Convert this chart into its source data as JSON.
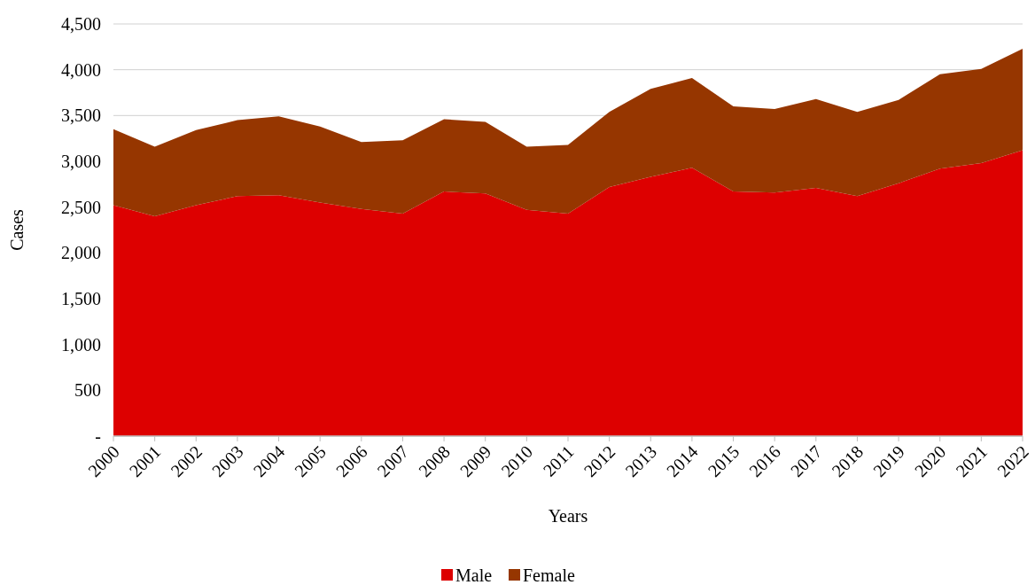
{
  "chart_data": {
    "type": "area",
    "stacked": true,
    "xlabel": "Years",
    "ylabel": "Cases",
    "categories": [
      "2000",
      "2001",
      "2002",
      "2003",
      "2004",
      "2005",
      "2006",
      "2007",
      "2008",
      "2009",
      "2010",
      "2011",
      "2012",
      "2013",
      "2014",
      "2015",
      "2016",
      "2017",
      "2018",
      "2019",
      "2020",
      "2021",
      "2022"
    ],
    "series": [
      {
        "name": "Male",
        "color": "#dd0000",
        "values": [
          2520,
          2400,
          2520,
          2620,
          2630,
          2550,
          2480,
          2430,
          2670,
          2650,
          2470,
          2430,
          2720,
          2830,
          2930,
          2670,
          2660,
          2710,
          2620,
          2760,
          2920,
          2980,
          3120
        ]
      },
      {
        "name": "Female",
        "color": "#963600",
        "values": [
          830,
          760,
          820,
          830,
          860,
          830,
          730,
          800,
          790,
          780,
          690,
          750,
          820,
          960,
          980,
          930,
          910,
          970,
          920,
          910,
          1030,
          1030,
          1110
        ]
      }
    ],
    "ylim": [
      0,
      4500
    ],
    "yticks": [
      {
        "value": 0,
        "label": "-"
      },
      500,
      {
        "value": 1000,
        "label": "1,000"
      },
      {
        "value": 1500,
        "label": "1,500"
      },
      {
        "value": 2000,
        "label": "2,000"
      },
      {
        "value": 2500,
        "label": "2,500"
      },
      {
        "value": 3000,
        "label": "3,000"
      },
      {
        "value": 3500,
        "label": "3,500"
      },
      {
        "value": 4000,
        "label": "4,000"
      },
      {
        "value": 4500,
        "label": "4,500"
      }
    ],
    "grid": "y",
    "legend": "bottom"
  }
}
